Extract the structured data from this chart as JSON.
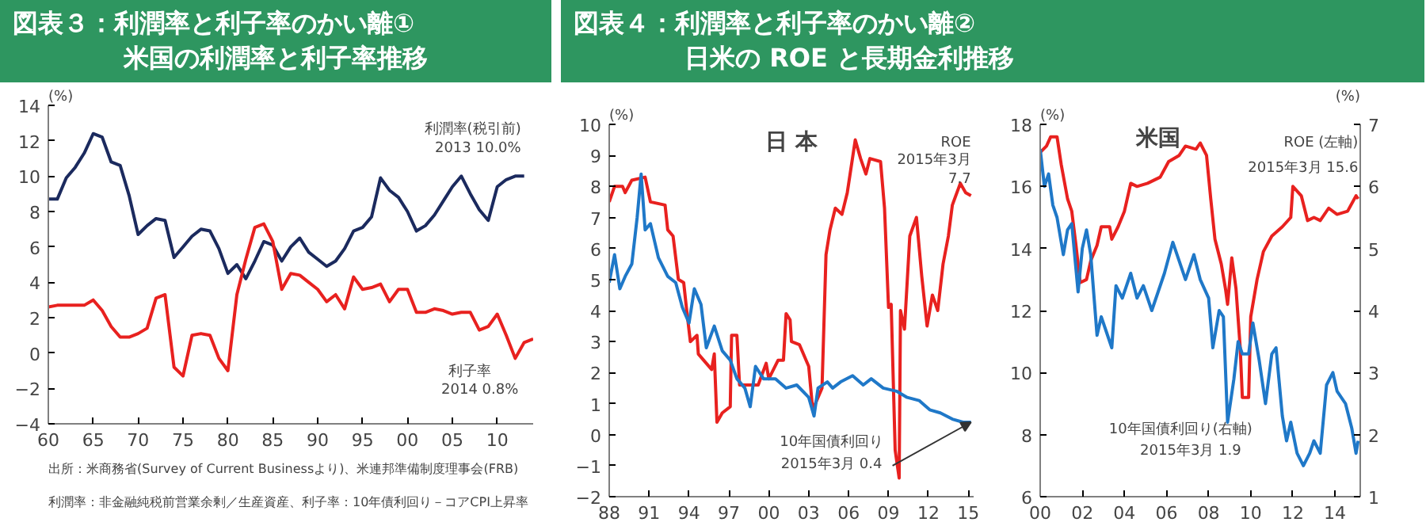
{
  "chart_data": [
    {
      "type": "line",
      "title": "図表３：利潤率と利子率のかい離①",
      "subtitle": "米国の利潤率と利子率推移",
      "ylabel": "(%)",
      "xlim": [
        1960,
        2014
      ],
      "xticks": [
        {
          "value": 1960,
          "label": "60"
        },
        {
          "value": 1965,
          "label": "65"
        },
        {
          "value": 1970,
          "label": "70"
        },
        {
          "value": 1975,
          "label": "75"
        },
        {
          "value": 1980,
          "label": "80"
        },
        {
          "value": 1985,
          "label": "85"
        },
        {
          "value": 1990,
          "label": "90"
        },
        {
          "value": 1995,
          "label": "95"
        },
        {
          "value": 2000,
          "label": "00"
        },
        {
          "value": 2005,
          "label": "05"
        },
        {
          "value": 2010,
          "label": "10"
        }
      ],
      "ylim": [
        -4,
        14
      ],
      "yticks": [
        -4,
        -2,
        0,
        2,
        4,
        6,
        8,
        10,
        12,
        14
      ],
      "series": [
        {
          "name": "利潤率(税引前)",
          "color": "#1b2a5e",
          "x": [
            1960,
            1961,
            1962,
            1963,
            1964,
            1965,
            1966,
            1967,
            1968,
            1969,
            1970,
            1971,
            1972,
            1973,
            1974,
            1975,
            1976,
            1977,
            1978,
            1979,
            1980,
            1981,
            1982,
            1983,
            1984,
            1985,
            1986,
            1987,
            1988,
            1989,
            1990,
            1991,
            1992,
            1993,
            1994,
            1995,
            1996,
            1997,
            1998,
            1999,
            2000,
            2001,
            2002,
            2003,
            2004,
            2005,
            2006,
            2007,
            2008,
            2009,
            2010,
            2011,
            2012,
            2013
          ],
          "values": [
            8.7,
            8.7,
            9.9,
            10.5,
            11.3,
            12.4,
            12.2,
            10.8,
            10.6,
            8.9,
            6.7,
            7.2,
            7.6,
            7.5,
            5.4,
            6.0,
            6.6,
            7.0,
            6.9,
            5.9,
            4.5,
            5.0,
            4.2,
            5.2,
            6.3,
            6.1,
            5.2,
            6.0,
            6.5,
            5.7,
            5.3,
            4.9,
            5.2,
            5.9,
            6.9,
            7.1,
            7.7,
            9.9,
            9.2,
            8.8,
            8.0,
            6.9,
            7.2,
            7.8,
            8.6,
            9.4,
            10.0,
            9.0,
            8.1,
            7.5,
            9.4,
            9.8,
            10.0,
            10.0
          ]
        },
        {
          "name": "利子率",
          "color": "#e8211f",
          "x": [
            1960,
            1961,
            1962,
            1963,
            1964,
            1965,
            1966,
            1967,
            1968,
            1969,
            1970,
            1971,
            1972,
            1973,
            1974,
            1975,
            1976,
            1977,
            1978,
            1979,
            1980,
            1981,
            1982,
            1983,
            1984,
            1985,
            1986,
            1987,
            1988,
            1989,
            1990,
            1991,
            1992,
            1993,
            1994,
            1995,
            1996,
            1997,
            1998,
            1999,
            2000,
            2001,
            2002,
            2003,
            2004,
            2005,
            2006,
            2007,
            2008,
            2009,
            2010,
            2011,
            2012,
            2013,
            2014
          ],
          "values": [
            2.6,
            2.7,
            2.7,
            2.7,
            2.7,
            3.0,
            2.4,
            1.5,
            0.9,
            0.9,
            1.1,
            1.4,
            3.1,
            3.3,
            -0.8,
            -1.3,
            1.0,
            1.1,
            1.0,
            -0.3,
            -1.0,
            3.3,
            5.3,
            7.1,
            7.3,
            6.3,
            3.6,
            4.5,
            4.4,
            4.0,
            3.6,
            2.9,
            3.3,
            2.5,
            4.3,
            3.6,
            3.7,
            3.9,
            2.9,
            3.6,
            3.6,
            2.3,
            2.3,
            2.5,
            2.4,
            2.2,
            2.3,
            2.3,
            1.3,
            1.5,
            2.2,
            1.0,
            -0.3,
            0.6,
            0.8
          ]
        }
      ],
      "annotations": [
        {
          "text": "2013 10.0%",
          "x": 2013,
          "y": 10.0
        },
        "2014 0.8%",
        "利潤率：非金融純税前営業余剰／生産資産、利子率：10年債利回り－コアCPI上昇率",
        "出所：米商務省(Survey of Current Businessより)、米連邦準備制度理事会(FRB)"
      ]
    },
    {
      "type": "line",
      "title": "図表４：利潤率と利子率のかい離②",
      "subtitle": "日米の ROE と長期金利推移",
      "ylabel": "(%)",
      "xlim": [
        1988,
        2015.4
      ],
      "xticks": [
        {
          "value": 1988,
          "label": "88"
        },
        {
          "value": 1991,
          "label": "91"
        },
        {
          "value": 1994,
          "label": "94"
        },
        {
          "value": 1997,
          "label": "97"
        },
        {
          "value": 2000,
          "label": "00"
        },
        {
          "value": 2003,
          "label": "03"
        },
        {
          "value": 2006,
          "label": "06"
        },
        {
          "value": 2009,
          "label": "09"
        },
        {
          "value": 2012,
          "label": "12"
        },
        {
          "value": 2015,
          "label": "15"
        }
      ],
      "ylim": [
        -2,
        10
      ],
      "yticks": [
        -2,
        -1,
        0,
        1,
        2,
        3,
        4,
        5,
        6,
        7,
        8,
        9,
        10
      ],
      "series": [
        {
          "name": "ROE",
          "color": "#e8211f",
          "x": [
            1988.0,
            1988.4,
            1989.0,
            1989.2,
            1989.7,
            1990.7,
            1991.1,
            1992.2,
            1992.4,
            1992.8,
            1993.2,
            1993.6,
            1993.8,
            1994.1,
            1994.6,
            1994.7,
            1995.3,
            1995.7,
            1995.9,
            1996.1,
            1996.5,
            1997.1,
            1997.2,
            1997.6,
            1997.8,
            1999.2,
            1999.8,
            2000.0,
            2000.7,
            2001.1,
            2001.3,
            2001.6,
            2001.7,
            2002.3,
            2003.0,
            2003.3,
            2003.7,
            2004.0,
            2004.3,
            2004.6,
            2005.0,
            2005.5,
            2005.9,
            2006.5,
            2006.9,
            2007.3,
            2007.6,
            2008.4,
            2008.7,
            2009.0,
            2009.2,
            2009.5,
            2009.8,
            2009.9,
            2010.2,
            2010.6,
            2011.1,
            2011.5,
            2011.9,
            2012.3,
            2012.7,
            2013.1,
            2013.5,
            2013.8,
            2014.4,
            2014.8,
            2015.2
          ],
          "values": [
            7.5,
            8.0,
            8.0,
            7.8,
            8.2,
            8.3,
            7.5,
            7.4,
            6.6,
            6.4,
            5.0,
            4.9,
            4.1,
            3.0,
            3.2,
            2.6,
            2.3,
            2.1,
            2.6,
            0.4,
            0.7,
            0.9,
            3.2,
            3.2,
            1.6,
            1.6,
            2.3,
            1.8,
            2.4,
            2.4,
            3.9,
            3.7,
            3.0,
            2.9,
            2.2,
            0.8,
            1.2,
            1.5,
            5.8,
            6.6,
            7.3,
            7.1,
            7.8,
            9.5,
            8.9,
            8.4,
            8.9,
            8.8,
            7.3,
            4.1,
            4.2,
            -0.5,
            -1.4,
            4.0,
            3.4,
            6.4,
            7.0,
            5.1,
            3.5,
            4.5,
            4.0,
            5.5,
            6.4,
            7.4,
            8.1,
            7.8,
            7.7
          ]
        },
        {
          "name": "10年国債利回り",
          "color": "#1f78c8",
          "x": [
            1988.0,
            1988.4,
            1988.8,
            1989.2,
            1989.7,
            1990.1,
            1990.4,
            1990.7,
            1991.1,
            1991.7,
            1992.4,
            1993.0,
            1993.5,
            1994.0,
            1994.4,
            1994.9,
            1995.3,
            1995.9,
            1996.5,
            1997.1,
            1997.6,
            1998.2,
            1998.6,
            1999.0,
            1999.6,
            2000.5,
            2001.3,
            2002.1,
            2003.0,
            2003.4,
            2003.7,
            2004.4,
            2004.8,
            2005.4,
            2006.3,
            2007.1,
            2007.7,
            2008.6,
            2009.6,
            2010.4,
            2011.3,
            2012.1,
            2012.9,
            2013.8,
            2014.6,
            2015.2
          ],
          "values": [
            4.9,
            5.8,
            4.7,
            5.1,
            5.5,
            7.0,
            8.4,
            6.6,
            6.8,
            5.7,
            5.1,
            4.9,
            4.1,
            3.6,
            4.7,
            4.2,
            2.8,
            3.5,
            2.7,
            2.4,
            1.8,
            1.5,
            0.9,
            2.2,
            1.8,
            1.8,
            1.5,
            1.6,
            1.2,
            0.6,
            1.5,
            1.7,
            1.5,
            1.7,
            1.9,
            1.6,
            1.8,
            1.5,
            1.4,
            1.2,
            1.1,
            0.8,
            0.7,
            0.5,
            0.4,
            0.4
          ]
        }
      ],
      "annotations": [
        "日 本",
        {
          "text": "2015年3月\n7.7",
          "x": 2015.2,
          "y": 7.7
        },
        {
          "text": "2015年3月 0.4",
          "x": 2015.2,
          "y": 0.4
        }
      ]
    },
    {
      "type": "line",
      "title": "米国",
      "ylabel": "(%)",
      "y2label": "(%)",
      "xlim": [
        2000,
        2015.2
      ],
      "xticks": [
        {
          "value": 2000,
          "label": "00"
        },
        {
          "value": 2002,
          "label": "02"
        },
        {
          "value": 2004,
          "label": "04"
        },
        {
          "value": 2006,
          "label": "06"
        },
        {
          "value": 2008,
          "label": "08"
        },
        {
          "value": 2010,
          "label": "10"
        },
        {
          "value": 2012,
          "label": "12"
        },
        {
          "value": 2014,
          "label": "14"
        }
      ],
      "ylim": [
        6,
        18
      ],
      "yticks": [
        6,
        8,
        10,
        12,
        14,
        16,
        18
      ],
      "y2lim": [
        1,
        7
      ],
      "y2ticks": [
        1,
        2,
        3,
        4,
        5,
        6,
        7
      ],
      "series": [
        {
          "name": "ROE (左軸)",
          "color": "#e8211f",
          "x": [
            2000.0,
            2000.3,
            2000.5,
            2000.8,
            2001.0,
            2001.3,
            2001.5,
            2001.7,
            2001.9,
            2002.2,
            2002.4,
            2002.7,
            2002.9,
            2003.3,
            2003.4,
            2003.7,
            2004.0,
            2004.3,
            2004.6,
            2005.1,
            2005.7,
            2006.1,
            2006.6,
            2006.9,
            2007.4,
            2007.6,
            2007.9,
            2008.1,
            2008.3,
            2008.6,
            2008.8,
            2008.9,
            2009.1,
            2009.3,
            2009.5,
            2009.6,
            2009.9,
            2010.0,
            2010.3,
            2010.6,
            2011.0,
            2011.5,
            2011.9,
            2012.0,
            2012.4,
            2012.7,
            2013.0,
            2013.3,
            2013.7,
            2014.1,
            2014.6,
            2015.0,
            2015.1
          ],
          "values": [
            17.1,
            17.3,
            17.6,
            17.6,
            16.7,
            15.6,
            15.2,
            14.1,
            12.9,
            13.0,
            13.6,
            14.1,
            14.7,
            14.7,
            14.3,
            14.7,
            15.2,
            16.1,
            16.0,
            16.1,
            16.3,
            16.8,
            17.0,
            17.3,
            17.2,
            17.4,
            17.0,
            15.6,
            14.3,
            13.5,
            12.7,
            12.2,
            13.7,
            12.7,
            10.8,
            9.2,
            9.2,
            11.8,
            13.0,
            13.9,
            14.4,
            14.7,
            15.0,
            16.0,
            15.7,
            14.9,
            15.0,
            14.9,
            15.3,
            15.1,
            15.2,
            15.7,
            15.6
          ]
        },
        {
          "name": "10年国債利回り(右軸)",
          "color": "#1f78c8",
          "axis": "y2",
          "x": [
            2000.0,
            2000.2,
            2000.4,
            2000.6,
            2000.8,
            2001.1,
            2001.3,
            2001.5,
            2001.8,
            2002.0,
            2002.2,
            2002.4,
            2002.7,
            2002.9,
            2003.1,
            2003.4,
            2003.6,
            2003.9,
            2004.3,
            2004.6,
            2004.9,
            2005.3,
            2005.6,
            2005.9,
            2006.3,
            2006.7,
            2006.9,
            2007.3,
            2007.6,
            2008.0,
            2008.2,
            2008.5,
            2008.7,
            2008.9,
            2009.2,
            2009.4,
            2009.6,
            2009.9,
            2010.1,
            2010.4,
            2010.7,
            2011.0,
            2011.2,
            2011.5,
            2011.7,
            2011.9,
            2012.2,
            2012.5,
            2012.8,
            2013.0,
            2013.3,
            2013.6,
            2013.9,
            2014.1,
            2014.5,
            2014.8,
            2015.0,
            2015.1
          ],
          "values": [
            6.6,
            6.0,
            6.2,
            5.7,
            5.5,
            4.9,
            5.3,
            5.4,
            4.3,
            5.0,
            5.3,
            4.9,
            3.6,
            3.9,
            3.7,
            3.4,
            4.4,
            4.2,
            4.6,
            4.2,
            4.4,
            4.0,
            4.3,
            4.6,
            5.1,
            4.7,
            4.5,
            4.9,
            4.5,
            4.2,
            3.4,
            4.0,
            3.9,
            2.2,
            2.9,
            3.5,
            3.3,
            3.3,
            3.8,
            3.2,
            2.5,
            3.3,
            3.4,
            2.3,
            1.9,
            2.2,
            1.7,
            1.5,
            1.7,
            1.9,
            1.7,
            2.8,
            3.0,
            2.7,
            2.5,
            2.1,
            1.7,
            1.9
          ]
        }
      ],
      "annotations": [
        {
          "text": "2015年3月 15.6",
          "x": 2015.1,
          "y": 15.6
        },
        "2015年3月 1.9"
      ]
    }
  ]
}
